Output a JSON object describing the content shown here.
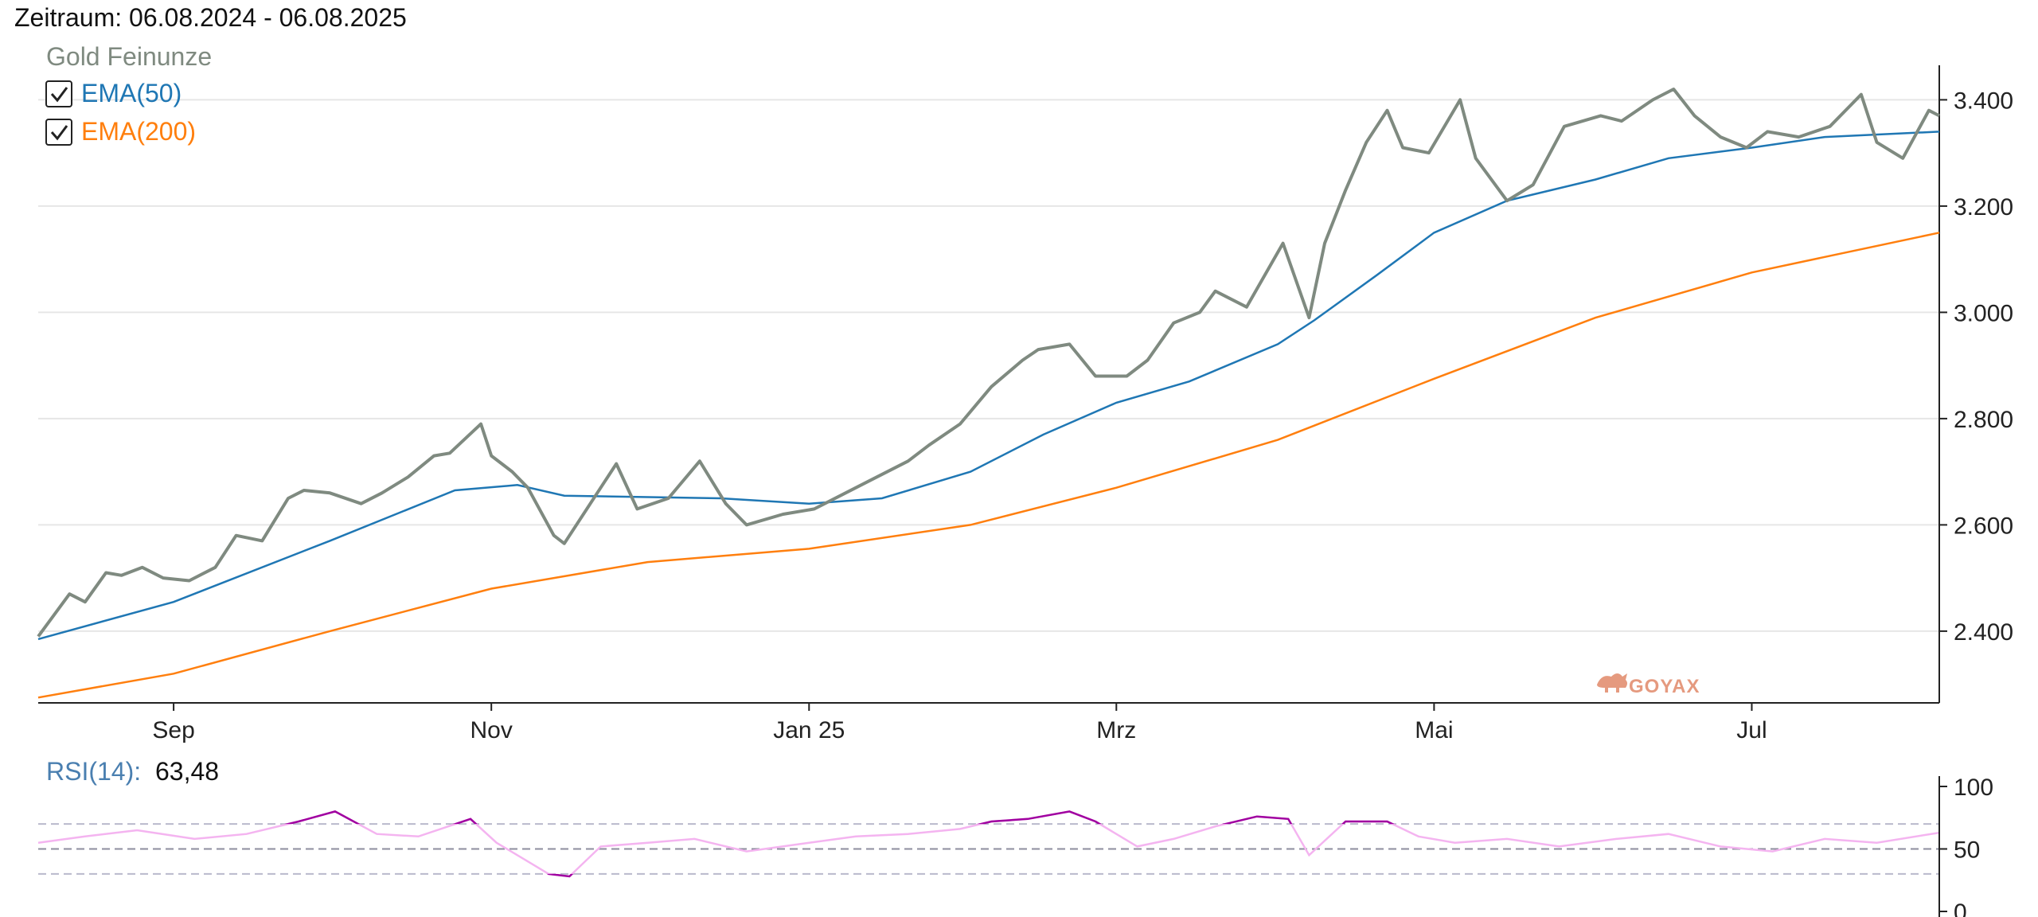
{
  "header": {
    "period_label": "Zeitraum: 06.08.2024 - 06.08.2025"
  },
  "legend": {
    "main_series_name": "Gold Feinunze",
    "ema50_label": "EMA(50)",
    "ema200_label": "EMA(200)",
    "ema50_checked": true,
    "ema200_checked": true
  },
  "rsi": {
    "label": "RSI(14):",
    "value": "63,48"
  },
  "watermark": "GOYAX",
  "colors": {
    "price": "#7f8a80",
    "ema50": "#1f77b4",
    "ema200": "#ff7f0e",
    "rsi_normal": "#f4b4f0",
    "rsi_extreme": "#a000a0",
    "rsi_label": "#4a7fb0",
    "grid": "#e6e6e6"
  },
  "chart_data": [
    {
      "type": "line",
      "title": "",
      "x_start": "2024-08-06",
      "x_end": "2025-08-06",
      "x_ticks": [
        {
          "date": "2024-09-01",
          "label": "Sep"
        },
        {
          "date": "2024-11-01",
          "label": "Nov"
        },
        {
          "date": "2025-01-01",
          "label": "Jan 25"
        },
        {
          "date": "2025-03-01",
          "label": "Mrz"
        },
        {
          "date": "2025-05-01",
          "label": "Mai"
        },
        {
          "date": "2025-07-01",
          "label": "Jul"
        }
      ],
      "y_ticks": [
        {
          "value": 2400,
          "label": "2.400"
        },
        {
          "value": 2600,
          "label": "2.600"
        },
        {
          "value": 2800,
          "label": "2.800"
        },
        {
          "value": 3000,
          "label": "3.000"
        },
        {
          "value": 3200,
          "label": "3.200"
        },
        {
          "value": 3400,
          "label": "3.400"
        }
      ],
      "ylim": [
        2265,
        3465
      ],
      "grid": true,
      "series": [
        {
          "name": "Gold Feinunze",
          "x": [
            "2024-08-06",
            "2024-08-09",
            "2024-08-12",
            "2024-08-15",
            "2024-08-19",
            "2024-08-22",
            "2024-08-26",
            "2024-08-30",
            "2024-09-04",
            "2024-09-09",
            "2024-09-13",
            "2024-09-18",
            "2024-09-23",
            "2024-09-26",
            "2024-10-01",
            "2024-10-07",
            "2024-10-11",
            "2024-10-16",
            "2024-10-21",
            "2024-10-24",
            "2024-10-30",
            "2024-11-01",
            "2024-11-05",
            "2024-11-08",
            "2024-11-13",
            "2024-11-15",
            "2024-11-20",
            "2024-11-25",
            "2024-11-29",
            "2024-12-05",
            "2024-12-11",
            "2024-12-16",
            "2024-12-20",
            "2024-12-27",
            "2025-01-02",
            "2025-01-08",
            "2025-01-14",
            "2025-01-20",
            "2025-01-24",
            "2025-01-30",
            "2025-02-05",
            "2025-02-11",
            "2025-02-14",
            "2025-02-20",
            "2025-02-25",
            "2025-03-03",
            "2025-03-07",
            "2025-03-12",
            "2025-03-17",
            "2025-03-20",
            "2025-03-26",
            "2025-04-02",
            "2025-04-07",
            "2025-04-10",
            "2025-04-14",
            "2025-04-18",
            "2025-04-22",
            "2025-04-25",
            "2025-04-30",
            "2025-05-06",
            "2025-05-09",
            "2025-05-15",
            "2025-05-20",
            "2025-05-26",
            "2025-06-02",
            "2025-06-06",
            "2025-06-12",
            "2025-06-16",
            "2025-06-20",
            "2025-06-25",
            "2025-06-30",
            "2025-07-04",
            "2025-07-10",
            "2025-07-16",
            "2025-07-22",
            "2025-07-25",
            "2025-07-30",
            "2025-08-04",
            "2025-08-06"
          ],
          "y": [
            2390,
            2430,
            2470,
            2455,
            2510,
            2505,
            2520,
            2500,
            2495,
            2520,
            2580,
            2570,
            2650,
            2665,
            2660,
            2640,
            2660,
            2690,
            2730,
            2735,
            2790,
            2730,
            2700,
            2670,
            2580,
            2565,
            2640,
            2715,
            2630,
            2650,
            2720,
            2640,
            2600,
            2620,
            2630,
            2660,
            2690,
            2720,
            2750,
            2790,
            2860,
            2910,
            2930,
            2940,
            2880,
            2880,
            2910,
            2980,
            3000,
            3040,
            3010,
            3130,
            2990,
            3130,
            3230,
            3320,
            3380,
            3310,
            3300,
            3400,
            3290,
            3210,
            3240,
            3350,
            3370,
            3360,
            3400,
            3420,
            3370,
            3330,
            3310,
            3340,
            3330,
            3350,
            3410,
            3320,
            3290,
            3380,
            3370
          ]
        },
        {
          "name": "EMA(50)",
          "x": [
            "2024-08-06",
            "2024-09-01",
            "2024-10-01",
            "2024-10-25",
            "2024-11-06",
            "2024-11-15",
            "2024-12-15",
            "2025-01-01",
            "2025-01-15",
            "2025-02-01",
            "2025-02-15",
            "2025-03-01",
            "2025-03-15",
            "2025-04-01",
            "2025-04-08",
            "2025-04-20",
            "2025-05-01",
            "2025-05-15",
            "2025-06-01",
            "2025-06-15",
            "2025-07-01",
            "2025-07-15",
            "2025-08-06"
          ],
          "y": [
            2385,
            2455,
            2570,
            2665,
            2675,
            2655,
            2650,
            2640,
            2650,
            2700,
            2770,
            2830,
            2870,
            2940,
            2985,
            3070,
            3150,
            3210,
            3250,
            3290,
            3310,
            3330,
            3340
          ]
        },
        {
          "name": "EMA(200)",
          "x": [
            "2024-08-06",
            "2024-09-01",
            "2024-10-01",
            "2024-11-01",
            "2024-12-01",
            "2025-01-01",
            "2025-02-01",
            "2025-03-01",
            "2025-04-01",
            "2025-05-01",
            "2025-06-01",
            "2025-07-01",
            "2025-08-06"
          ],
          "y": [
            2275,
            2320,
            2400,
            2480,
            2530,
            2555,
            2600,
            2670,
            2760,
            2875,
            2990,
            3075,
            3150
          ]
        }
      ]
    },
    {
      "type": "line",
      "title": "RSI(14)",
      "value_label": "63,48",
      "x_start": "2024-08-06",
      "x_end": "2025-08-06",
      "ylim": [
        0,
        100
      ],
      "y_ticks": [
        {
          "value": 0,
          "label": "0"
        },
        {
          "value": 50,
          "label": "50"
        },
        {
          "value": 100,
          "label": "100"
        }
      ],
      "reference_lines": [
        30,
        50,
        70
      ],
      "series": [
        {
          "name": "RSI(14)",
          "x": [
            "2024-08-06",
            "2024-08-15",
            "2024-08-25",
            "2024-09-05",
            "2024-09-15",
            "2024-09-25",
            "2024-10-02",
            "2024-10-10",
            "2024-10-18",
            "2024-10-28",
            "2024-11-02",
            "2024-11-08",
            "2024-11-12",
            "2024-11-16",
            "2024-11-22",
            "2024-12-01",
            "2024-12-10",
            "2024-12-20",
            "2025-01-01",
            "2025-01-10",
            "2025-01-20",
            "2025-01-30",
            "2025-02-05",
            "2025-02-12",
            "2025-02-20",
            "2025-02-25",
            "2025-03-05",
            "2025-03-12",
            "2025-03-20",
            "2025-03-28",
            "2025-04-03",
            "2025-04-07",
            "2025-04-14",
            "2025-04-22",
            "2025-04-28",
            "2025-05-05",
            "2025-05-15",
            "2025-05-25",
            "2025-06-05",
            "2025-06-15",
            "2025-06-25",
            "2025-07-05",
            "2025-07-15",
            "2025-07-25",
            "2025-08-06"
          ],
          "y": [
            55,
            60,
            65,
            58,
            62,
            72,
            80,
            62,
            60,
            74,
            55,
            40,
            30,
            28,
            52,
            55,
            58,
            48,
            55,
            60,
            62,
            66,
            72,
            74,
            80,
            72,
            52,
            58,
            68,
            76,
            74,
            45,
            72,
            72,
            60,
            55,
            58,
            52,
            58,
            62,
            52,
            48,
            58,
            55,
            63
          ]
        }
      ]
    }
  ]
}
